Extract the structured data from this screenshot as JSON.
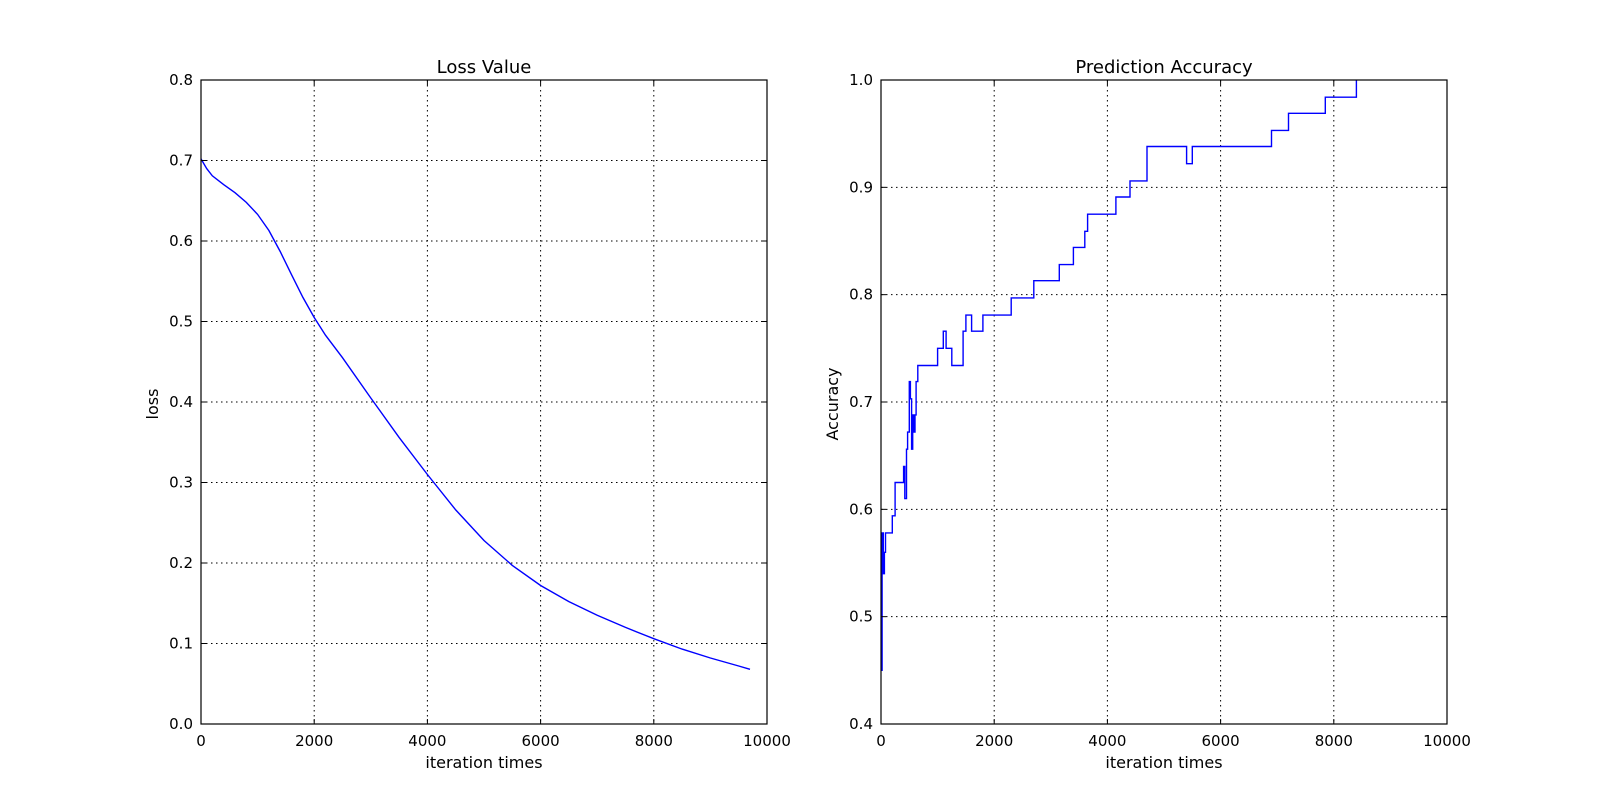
{
  "colors": {
    "series": "#0000ff",
    "axes": "#000000",
    "background": "#ffffff"
  },
  "chart_data": [
    {
      "type": "line",
      "title": "Loss Value",
      "xlabel": "iteration times",
      "ylabel": "loss",
      "xlim": [
        0,
        10000
      ],
      "ylim": [
        0.0,
        0.8
      ],
      "xticks": [
        0,
        2000,
        4000,
        6000,
        8000,
        10000
      ],
      "xtick_labels": [
        "0",
        "2000",
        "4000",
        "6000",
        "8000",
        "10000"
      ],
      "yticks": [
        0.0,
        0.1,
        0.2,
        0.3,
        0.4,
        0.5,
        0.6,
        0.7,
        0.8
      ],
      "ytick_labels": [
        "0.0",
        "0.1",
        "0.2",
        "0.3",
        "0.4",
        "0.5",
        "0.6",
        "0.7",
        "0.8"
      ],
      "grid": true,
      "step": false,
      "x": [
        0,
        100,
        200,
        400,
        600,
        800,
        1000,
        1200,
        1400,
        1600,
        1800,
        2000,
        2200,
        2500,
        3000,
        3500,
        4000,
        4500,
        5000,
        5500,
        6000,
        6500,
        7000,
        7500,
        8000,
        8500,
        9000,
        9500,
        9700
      ],
      "y": [
        0.702,
        0.69,
        0.681,
        0.67,
        0.66,
        0.648,
        0.633,
        0.613,
        0.587,
        0.558,
        0.53,
        0.505,
        0.483,
        0.455,
        0.405,
        0.356,
        0.31,
        0.266,
        0.228,
        0.197,
        0.172,
        0.152,
        0.135,
        0.12,
        0.106,
        0.093,
        0.082,
        0.072,
        0.068
      ]
    },
    {
      "type": "line",
      "title": "Prediction Accuracy",
      "xlabel": "iteration times",
      "ylabel": "Accuracy",
      "xlim": [
        0,
        10000
      ],
      "ylim": [
        0.4,
        1.0
      ],
      "xticks": [
        0,
        2000,
        4000,
        6000,
        8000,
        10000
      ],
      "xtick_labels": [
        "0",
        "2000",
        "4000",
        "6000",
        "8000",
        "10000"
      ],
      "yticks": [
        0.4,
        0.5,
        0.6,
        0.7,
        0.8,
        0.9,
        1.0
      ],
      "ytick_labels": [
        "0.4",
        "0.5",
        "0.6",
        "0.7",
        "0.8",
        "0.9",
        "1.0"
      ],
      "grid": true,
      "step": true,
      "x": [
        0,
        20,
        40,
        60,
        80,
        100,
        150,
        200,
        250,
        400,
        420,
        450,
        470,
        500,
        520,
        540,
        560,
        580,
        600,
        620,
        650,
        700,
        1000,
        1100,
        1150,
        1250,
        1300,
        1450,
        1500,
        1600,
        1800,
        1900,
        2300,
        2700,
        3150,
        3400,
        3600,
        3650,
        4150,
        4400,
        4700,
        5400,
        5500,
        6900,
        7200,
        7850,
        8400
      ],
      "y": [
        0.45,
        0.578,
        0.54,
        0.56,
        0.578,
        0.578,
        0.578,
        0.594,
        0.625,
        0.64,
        0.61,
        0.656,
        0.672,
        0.719,
        0.703,
        0.656,
        0.688,
        0.672,
        0.688,
        0.719,
        0.734,
        0.734,
        0.75,
        0.766,
        0.75,
        0.734,
        0.734,
        0.766,
        0.781,
        0.766,
        0.781,
        0.781,
        0.797,
        0.813,
        0.828,
        0.844,
        0.859,
        0.875,
        0.891,
        0.906,
        0.938,
        0.922,
        0.938,
        0.953,
        0.969,
        0.984,
        1.0
      ]
    }
  ]
}
